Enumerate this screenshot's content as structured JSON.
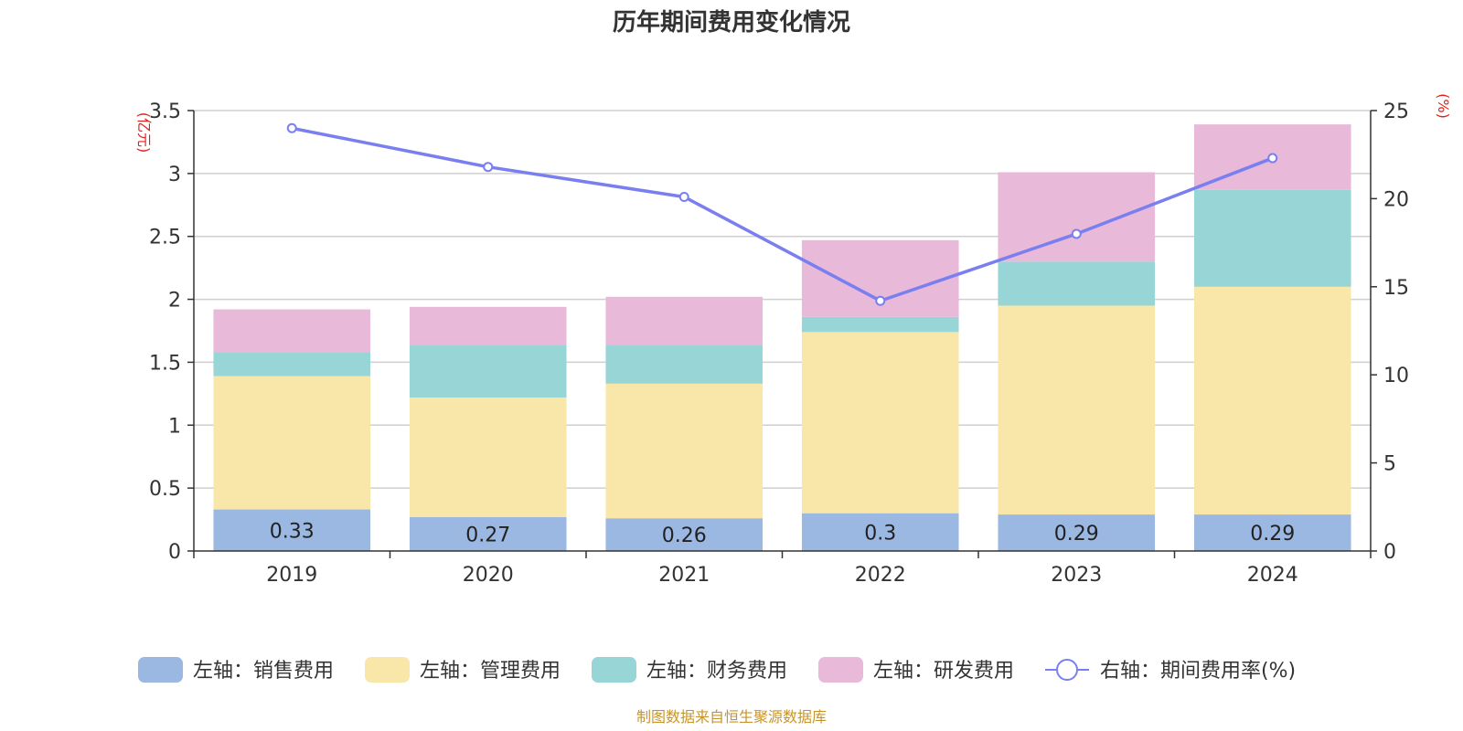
{
  "chart_data": {
    "type": "bar",
    "title": "历年期间费用变化情况",
    "categories": [
      "2019",
      "2020",
      "2021",
      "2022",
      "2023",
      "2024"
    ],
    "series": [
      {
        "name": "左轴：销售费用",
        "axis": "left",
        "stack": "total",
        "color": "#9bb8e3",
        "values": [
          0.33,
          0.27,
          0.26,
          0.3,
          0.29,
          0.29
        ],
        "labels": [
          "0.33",
          "0.27",
          "0.26",
          "0.3",
          "0.29",
          "0.29"
        ]
      },
      {
        "name": "左轴：管理费用",
        "axis": "left",
        "stack": "total",
        "color": "#f8e7a8",
        "values": [
          1.06,
          0.95,
          1.07,
          1.44,
          1.66,
          1.81
        ]
      },
      {
        "name": "左轴：财务费用",
        "axis": "left",
        "stack": "total",
        "color": "#98d5d6",
        "values": [
          0.19,
          0.42,
          0.31,
          0.12,
          0.35,
          0.77
        ]
      },
      {
        "name": "左轴：研发费用",
        "axis": "left",
        "stack": "total",
        "color": "#e8b9d9",
        "values": [
          0.34,
          0.3,
          0.38,
          0.61,
          0.71,
          0.52
        ]
      },
      {
        "name": "右轴：期间费用率(%)",
        "axis": "right",
        "type": "line",
        "color": "#7a7ff0",
        "values": [
          24.0,
          21.8,
          20.1,
          14.2,
          18.0,
          22.3
        ]
      }
    ],
    "left_axis": {
      "unit_label": "(亿元)",
      "ylim": [
        0,
        3.5
      ],
      "ticks": [
        0,
        0.5,
        1,
        1.5,
        2,
        2.5,
        3,
        3.5
      ],
      "tick_labels": [
        "0",
        "0.5",
        "1",
        "1.5",
        "2",
        "2.5",
        "3",
        "3.5"
      ]
    },
    "right_axis": {
      "unit_label": "(%)",
      "ylim": [
        0,
        25
      ],
      "ticks": [
        0,
        5,
        10,
        15,
        20,
        25
      ],
      "tick_labels": [
        "0",
        "5",
        "10",
        "15",
        "20",
        "25"
      ]
    },
    "grid": true,
    "legend_position": "bottom",
    "source": "制图数据来自恒生聚源数据库"
  }
}
